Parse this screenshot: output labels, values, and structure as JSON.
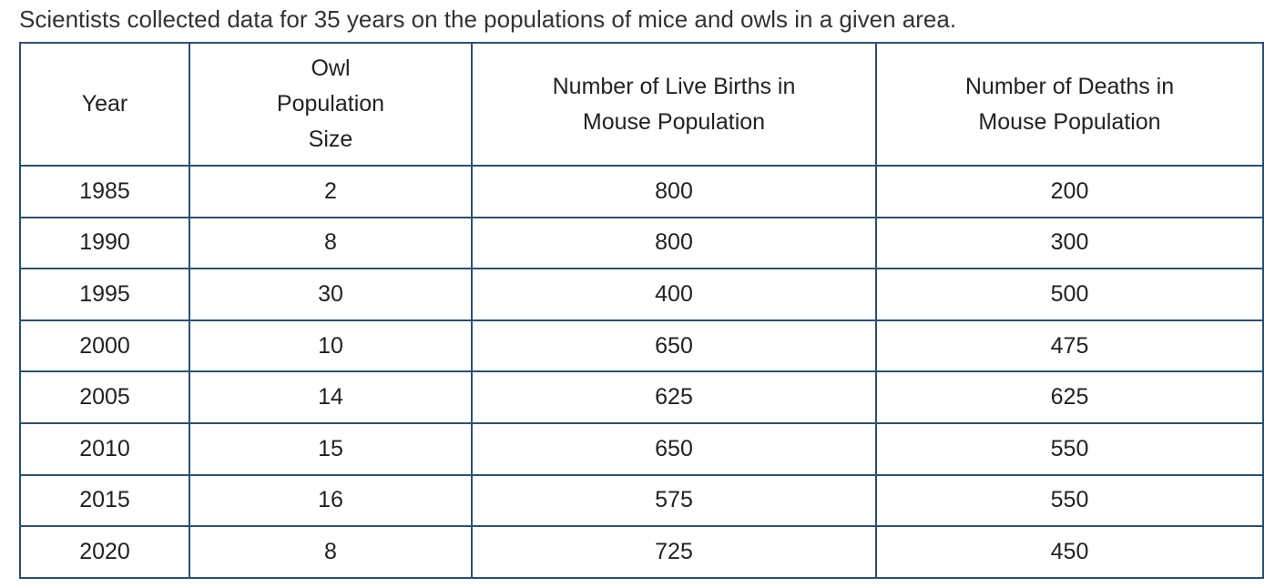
{
  "intro": "Scientists collected data for 35 years on the populations of mice and owls in a given area.",
  "table": {
    "header": [
      [
        "Year"
      ],
      [
        "Owl",
        "Population",
        "Size"
      ],
      [
        "Number of Live Births in",
        "Mouse Population"
      ],
      [
        "Number of Deaths in",
        "Mouse Population"
      ]
    ],
    "rows": [
      [
        1985,
        2,
        800,
        200
      ],
      [
        1990,
        8,
        800,
        300
      ],
      [
        1995,
        30,
        400,
        500
      ],
      [
        2000,
        10,
        650,
        475
      ],
      [
        2005,
        14,
        625,
        625
      ],
      [
        2010,
        15,
        650,
        550
      ],
      [
        2015,
        16,
        575,
        550
      ],
      [
        2020,
        8,
        725,
        450
      ]
    ]
  }
}
